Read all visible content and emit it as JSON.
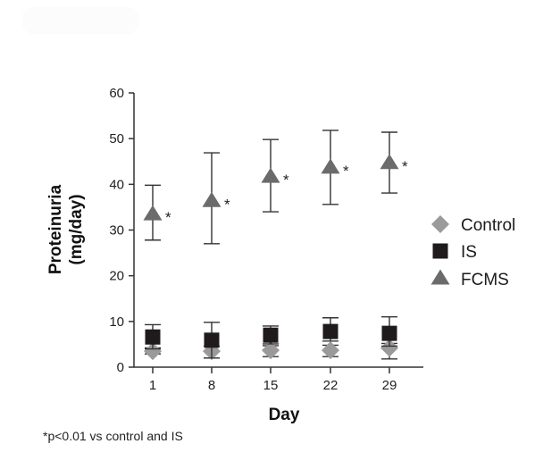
{
  "chart_data": {
    "type": "scatter",
    "title": "",
    "xlabel": "Day",
    "ylabel_lines": [
      "Proteinuria",
      "(mg/day)"
    ],
    "ylim": [
      0,
      60
    ],
    "yticks": [
      0,
      10,
      20,
      30,
      40,
      50,
      60
    ],
    "categories": [
      "1",
      "8",
      "15",
      "22",
      "29"
    ],
    "grid": false,
    "legend_position": "right",
    "series": [
      {
        "name": "Control",
        "marker": "diamond",
        "color": "#9a9a9a",
        "values": [
          3.5,
          3.5,
          3.7,
          3.7,
          4.2
        ],
        "err_low": [
          2.9,
          2.0,
          2.3,
          2.3,
          1.8
        ],
        "err_high": [
          4.2,
          4.6,
          4.7,
          4.8,
          5.2
        ]
      },
      {
        "name": "IS",
        "marker": "square",
        "color": "#1f1a1b",
        "values": [
          6.6,
          5.9,
          7.0,
          7.8,
          7.4
        ],
        "err_low": [
          4.0,
          2.0,
          5.1,
          5.7,
          4.6
        ],
        "err_high": [
          9.3,
          9.8,
          9.0,
          10.8,
          11.0
        ]
      },
      {
        "name": "FCMS",
        "marker": "triangle",
        "color": "#6b6b6b",
        "values": [
          33.4,
          36.3,
          41.6,
          43.6,
          44.6
        ],
        "err_low": [
          27.8,
          27.0,
          34.0,
          35.6,
          38.1
        ],
        "err_high": [
          39.8,
          46.9,
          49.8,
          51.8,
          51.4
        ],
        "significance": [
          "*",
          "*",
          "*",
          "*",
          "*"
        ]
      }
    ],
    "footnote": "*p<0.01 vs control and IS"
  }
}
